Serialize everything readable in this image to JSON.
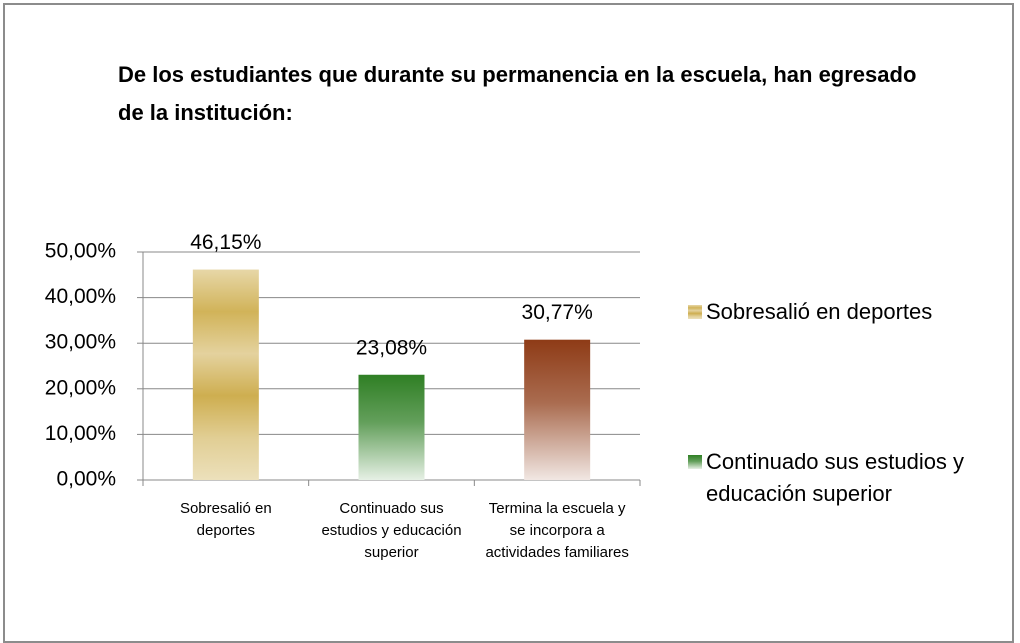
{
  "chart_data": {
    "type": "bar",
    "title": "De los estudiantes que durante su permanencia en la escuela, han egresado de la institución:",
    "categories": [
      "Sobresalió en deportes",
      "Continuado sus estudios y educación superior",
      "Terminа la escuela y se incorpora a actividades familiares"
    ],
    "values": [
      46.15,
      23.08,
      30.77
    ],
    "value_labels": [
      "46,15%",
      "23,08%",
      "30,77%"
    ],
    "colors": [
      "#c9a53c",
      "#2f7f24",
      "#8e3b16"
    ],
    "ylim": [
      0,
      50
    ],
    "yticks": [
      {
        "value": 0,
        "label": "0,00%"
      },
      {
        "value": 10,
        "label": "10,00%"
      },
      {
        "value": 20,
        "label": "20,00%"
      },
      {
        "value": 30,
        "label": "30,00%"
      },
      {
        "value": 40,
        "label": "40,00%"
      },
      {
        "value": 50,
        "label": "50,00%"
      }
    ],
    "grid": true
  }
}
